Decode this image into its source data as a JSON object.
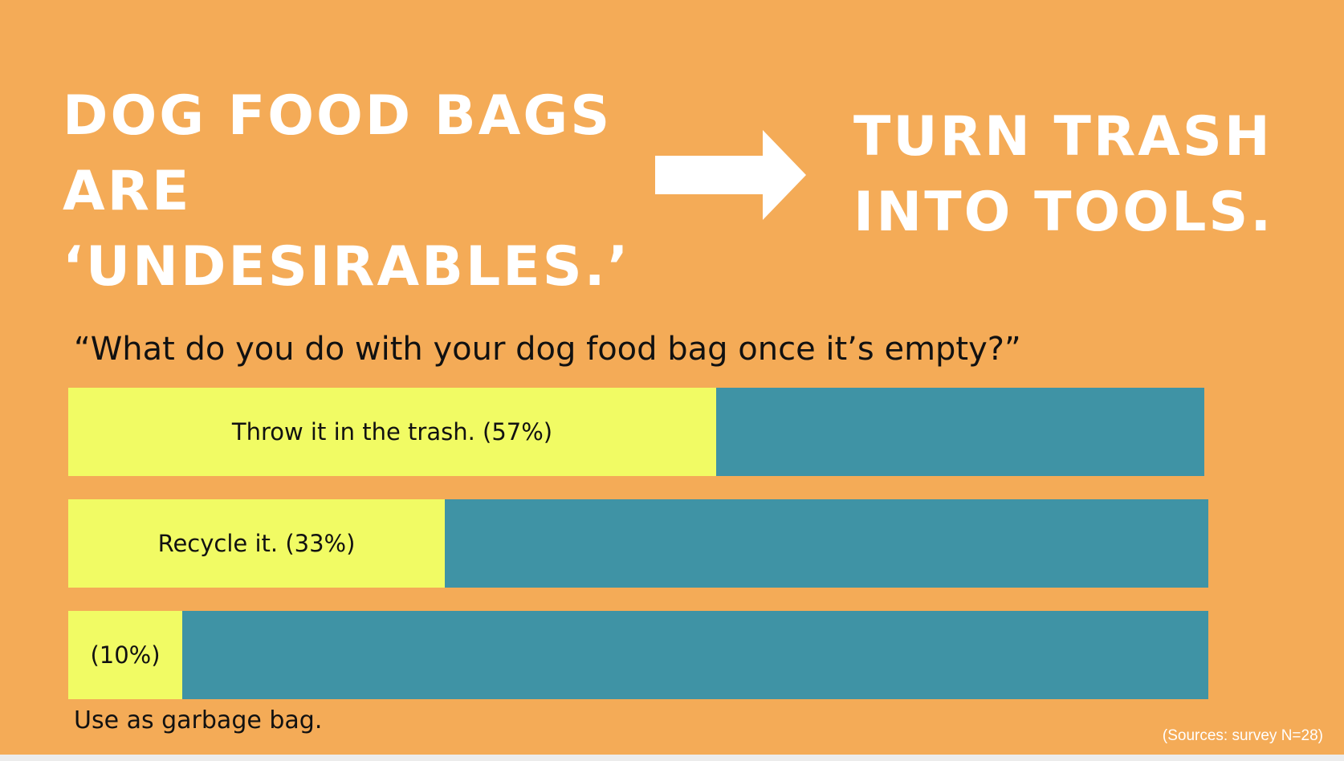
{
  "headline": {
    "left_lines": [
      "DOG FOOD BAGS",
      "ARE",
      "‘UNDESIRABLES.’"
    ],
    "right_lines": [
      "TURN TRASH",
      "INTO TOOLS."
    ]
  },
  "icons": {
    "arrow": "right-arrow-icon"
  },
  "colors": {
    "background": "#f4ab57",
    "fill": "#f1fb64",
    "track": "#3f93a5",
    "headline_text": "#ffffff"
  },
  "chart_data": {
    "type": "bar",
    "orientation": "horizontal",
    "stacked_to_100": true,
    "title": "“What do you do with your dog food bag once it’s empty?”",
    "categories": [
      "Throw it in the trash.",
      "Recycle it.",
      "Use as garbage bag."
    ],
    "values": [
      57,
      33,
      10
    ],
    "unit": "%",
    "data_labels": [
      "Throw it in the trash. (57%)",
      "Recycle it. (33%)",
      "(10%)"
    ],
    "xlim": [
      0,
      100
    ],
    "grid": false,
    "legend": "none",
    "source": "(Sources: survey N=28)"
  }
}
